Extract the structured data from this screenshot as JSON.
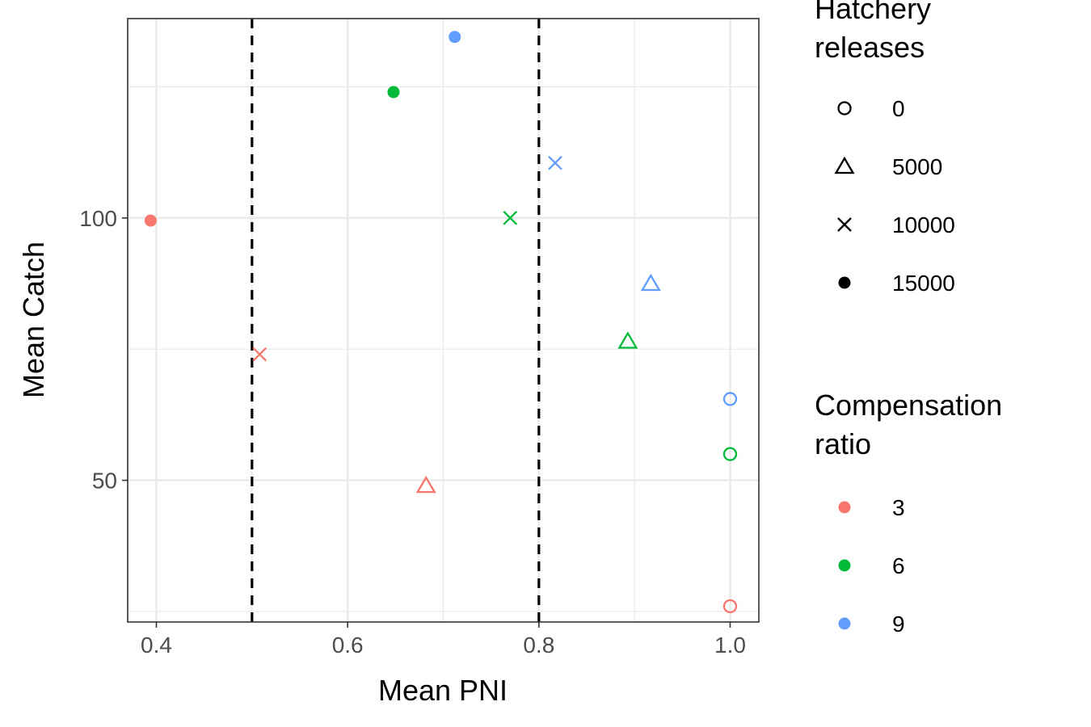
{
  "chart_data": {
    "type": "scatter",
    "title": "",
    "xlabel": "Mean PNI",
    "ylabel": "Mean Catch",
    "xlim": [
      0.37,
      1.03
    ],
    "ylim": [
      23,
      138
    ],
    "x_ticks": [
      0.4,
      0.6,
      0.8,
      1.0
    ],
    "x_tick_labels": [
      "0.4",
      "0.6",
      "0.8",
      "1.0"
    ],
    "y_ticks": [
      50,
      100
    ],
    "y_tick_labels": [
      "50",
      "100"
    ],
    "x_minor_gridlines": [
      0.5,
      0.7,
      0.9
    ],
    "y_minor_gridlines": [
      25,
      75,
      125
    ],
    "grid": true,
    "reference_lines": [
      {
        "orientation": "vertical",
        "x": 0.5,
        "style": "dashed",
        "color": "#000000"
      },
      {
        "orientation": "vertical",
        "x": 0.8,
        "style": "dashed",
        "color": "#000000"
      }
    ],
    "legend_position": "right",
    "legends": [
      {
        "title": "Hatchery releases",
        "title_lines": [
          "Hatchery",
          "releases"
        ],
        "aesthetic": "shape",
        "entries": [
          {
            "label": "0",
            "shape": "open-circle"
          },
          {
            "label": "5000",
            "shape": "open-triangle"
          },
          {
            "label": "10000",
            "shape": "cross"
          },
          {
            "label": "15000",
            "shape": "filled-circle"
          }
        ]
      },
      {
        "title": "Compensation ratio",
        "title_lines": [
          "Compensation",
          "ratio"
        ],
        "aesthetic": "color",
        "entries": [
          {
            "label": "3",
            "color": "#F8766D"
          },
          {
            "label": "6",
            "color": "#00BA38"
          },
          {
            "label": "9",
            "color": "#619CFF"
          }
        ]
      }
    ],
    "points": [
      {
        "compensation_ratio": "3",
        "hatchery_releases": "0",
        "x": 1.0,
        "y": 26
      },
      {
        "compensation_ratio": "3",
        "hatchery_releases": "5000",
        "x": 0.682,
        "y": 49
      },
      {
        "compensation_ratio": "3",
        "hatchery_releases": "10000",
        "x": 0.508,
        "y": 74
      },
      {
        "compensation_ratio": "3",
        "hatchery_releases": "15000",
        "x": 0.394,
        "y": 99.5
      },
      {
        "compensation_ratio": "6",
        "hatchery_releases": "0",
        "x": 1.0,
        "y": 55
      },
      {
        "compensation_ratio": "6",
        "hatchery_releases": "5000",
        "x": 0.893,
        "y": 76.5
      },
      {
        "compensation_ratio": "6",
        "hatchery_releases": "10000",
        "x": 0.77,
        "y": 100
      },
      {
        "compensation_ratio": "6",
        "hatchery_releases": "15000",
        "x": 0.648,
        "y": 124
      },
      {
        "compensation_ratio": "9",
        "hatchery_releases": "0",
        "x": 1.0,
        "y": 65.5
      },
      {
        "compensation_ratio": "9",
        "hatchery_releases": "5000",
        "x": 0.917,
        "y": 87.5
      },
      {
        "compensation_ratio": "9",
        "hatchery_releases": "10000",
        "x": 0.817,
        "y": 110.5
      },
      {
        "compensation_ratio": "9",
        "hatchery_releases": "15000",
        "x": 0.712,
        "y": 134.5
      }
    ]
  }
}
